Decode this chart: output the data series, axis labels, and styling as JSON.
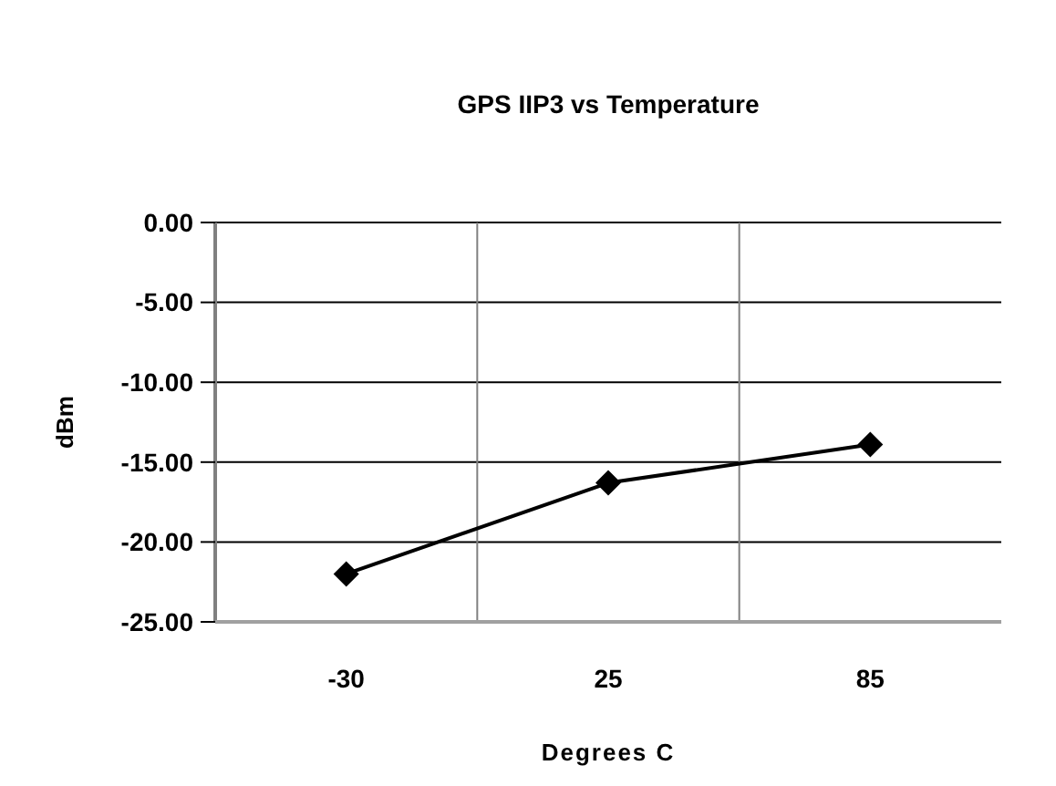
{
  "chart_data": {
    "type": "line",
    "title": "GPS IIP3 vs Temperature",
    "xlabel": "Degrees C",
    "ylabel": "dBm",
    "categories": [
      "-30",
      "25",
      "85"
    ],
    "series": [
      {
        "color": "#000000",
        "values": [
          -22.0,
          -16.3,
          -13.9
        ]
      }
    ],
    "ylim": [
      -25,
      0
    ],
    "yticks": [
      {
        "value": 0,
        "label": "0.00"
      },
      {
        "value": -5,
        "label": "-5.00"
      },
      {
        "value": -10,
        "label": "-10.00"
      },
      {
        "value": -15,
        "label": "-15.00"
      },
      {
        "value": -20,
        "label": "-20.00"
      },
      {
        "value": -25,
        "label": "-25.00"
      }
    ],
    "grid": true,
    "marker": "diamond",
    "line_style": "solid"
  }
}
